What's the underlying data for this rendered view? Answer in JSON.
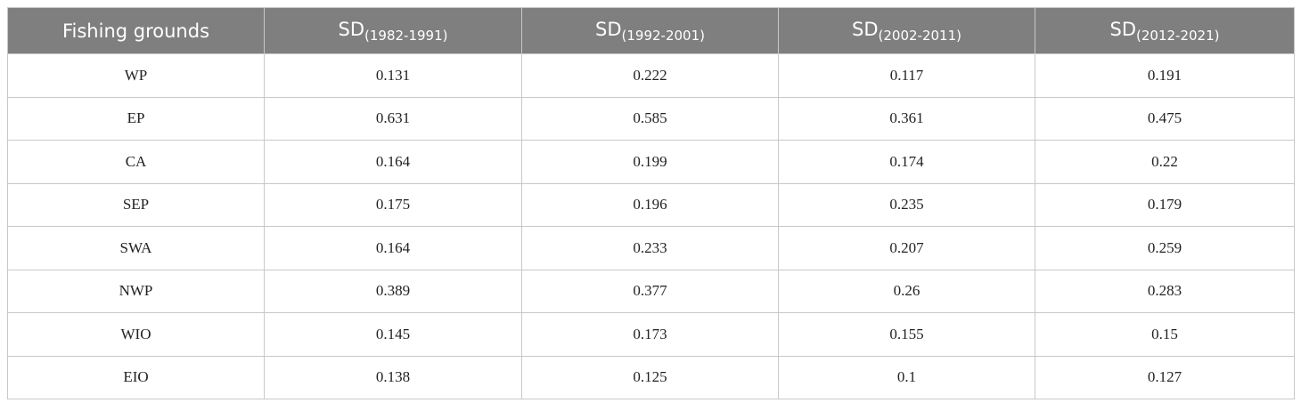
{
  "table": {
    "columns": [
      "Fishing grounds",
      {
        "main": "SD",
        "sub": "(1982-1991)"
      },
      {
        "main": "SD",
        "sub": "(1992-2001)"
      },
      {
        "main": "SD",
        "sub": "(2002-2011)"
      },
      {
        "main": "SD",
        "sub": "(2012-2021)"
      }
    ],
    "rows": [
      [
        "WP",
        0.131,
        0.222,
        0.117,
        0.191
      ],
      [
        "EP",
        0.631,
        0.585,
        0.361,
        0.475
      ],
      [
        "CA",
        0.164,
        0.199,
        0.174,
        0.22
      ],
      [
        "SEP",
        0.175,
        0.196,
        0.235,
        0.179
      ],
      [
        "SWA",
        0.164,
        0.233,
        0.207,
        0.259
      ],
      [
        "NWP",
        0.389,
        0.377,
        0.26,
        0.283
      ],
      [
        "WIO",
        0.145,
        0.173,
        0.155,
        0.15
      ],
      [
        "EIO",
        0.138,
        0.125,
        0.1,
        0.127
      ]
    ]
  }
}
